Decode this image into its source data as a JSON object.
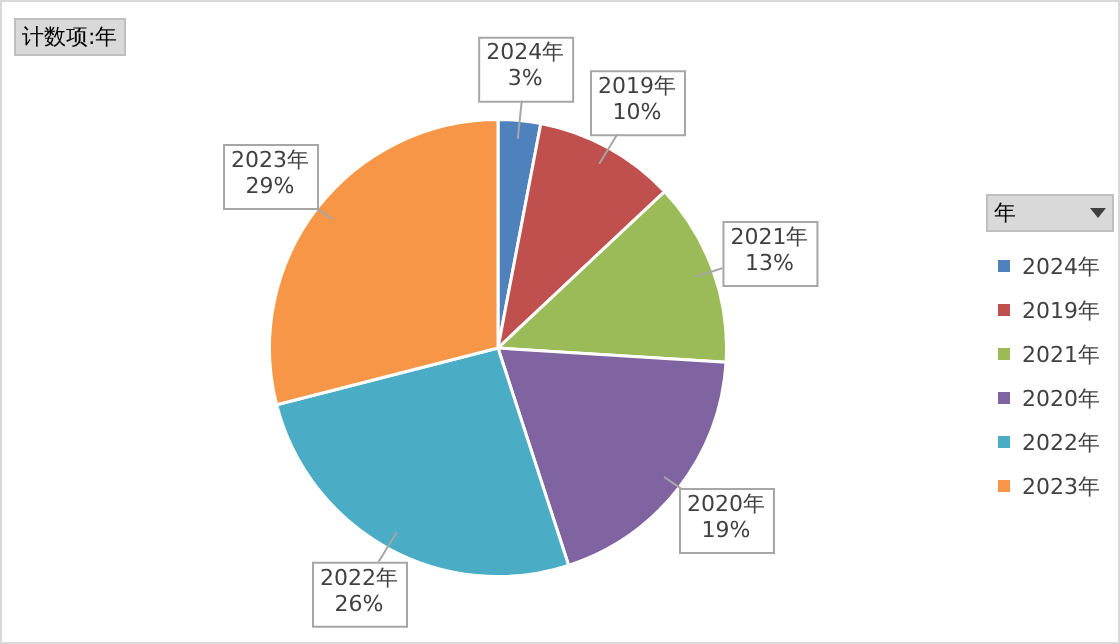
{
  "chart_data": {
    "type": "pie",
    "title": "计数项:年",
    "legend_title": "年",
    "legend": "right",
    "categories": [
      "2024年",
      "2019年",
      "2021年",
      "2020年",
      "2022年",
      "2023年"
    ],
    "values": [
      3,
      10,
      13,
      19,
      26,
      29
    ],
    "value_labels": [
      "3%",
      "10%",
      "13%",
      "19%",
      "26%",
      "29%"
    ],
    "colors": [
      "#4f81bd",
      "#c0504d",
      "#9bbb59",
      "#8064a2",
      "#4bacc6",
      "#f79646"
    ]
  }
}
